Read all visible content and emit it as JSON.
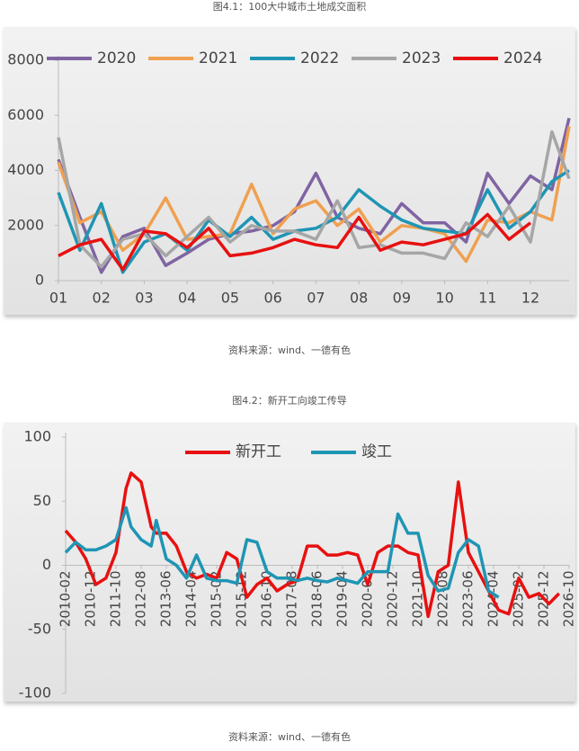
{
  "chart_data": [
    {
      "type": "line",
      "title": "图4.1：100大中城市土地成交面积",
      "source": "资料来源：wind、一德有色",
      "legend": "top",
      "x": [
        1,
        1.5,
        2,
        2.5,
        3,
        3.5,
        4,
        4.5,
        5,
        5.5,
        6,
        6.5,
        7,
        7.5,
        8,
        8.5,
        9,
        9.5,
        10,
        10.5,
        11,
        11.5,
        12,
        12.5,
        12.9
      ],
      "xlim": [
        1,
        12.9
      ],
      "xticks": [
        {
          "value": 1,
          "label": "01"
        },
        {
          "value": 2,
          "label": "02"
        },
        {
          "value": 3,
          "label": "03"
        },
        {
          "value": 4,
          "label": "04"
        },
        {
          "value": 5,
          "label": "05"
        },
        {
          "value": 6,
          "label": "06"
        },
        {
          "value": 7,
          "label": "07"
        },
        {
          "value": 8,
          "label": "08"
        },
        {
          "value": 9,
          "label": "09"
        },
        {
          "value": 10,
          "label": "10"
        },
        {
          "value": 11,
          "label": "11"
        },
        {
          "value": 12,
          "label": "12"
        }
      ],
      "ylim": [
        0,
        8000
      ],
      "yticks": [
        0,
        2000,
        4000,
        6000,
        8000
      ],
      "series": [
        {
          "name": "2020",
          "color": "#8064a2",
          "values": [
            4400,
            2300,
            300,
            1600,
            1900,
            550,
            1000,
            1500,
            1700,
            1800,
            2000,
            2500,
            3900,
            2300,
            1900,
            1700,
            2800,
            2100,
            2100,
            1400,
            3900,
            2800,
            3800,
            3300,
            5900
          ]
        },
        {
          "name": "2021",
          "color": "#f0a050",
          "values": [
            4300,
            2100,
            2500,
            1100,
            1700,
            3000,
            1500,
            1600,
            1700,
            3500,
            1700,
            2600,
            2900,
            2000,
            2600,
            1400,
            2000,
            1900,
            1700,
            700,
            2200,
            2100,
            2500,
            2200,
            5600
          ]
        },
        {
          "name": "2022",
          "color": "#1f95b4",
          "values": [
            3200,
            1100,
            2800,
            300,
            1400,
            1700,
            1100,
            2200,
            1600,
            2300,
            1500,
            1800,
            1900,
            2300,
            3300,
            2700,
            2200,
            1900,
            1800,
            1700,
            3300,
            1900,
            2500,
            3600,
            4000
          ]
        },
        {
          "name": "2023",
          "color": "#a6a6a6",
          "values": [
            5200,
            1300,
            500,
            1500,
            1700,
            900,
            1600,
            2300,
            1400,
            2000,
            1800,
            1800,
            1500,
            2900,
            1200,
            1300,
            1000,
            1000,
            800,
            2100,
            1600,
            2700,
            1400,
            5400,
            3700
          ]
        },
        {
          "name": "2024",
          "color": "#e81010",
          "values": [
            900,
            1300,
            1500,
            400,
            1800,
            1700,
            1200,
            1900,
            900,
            1000,
            1200,
            1500,
            1300,
            1200,
            2300,
            1100,
            1400,
            1300,
            1500,
            1700,
            2400,
            1500,
            2100,
            null,
            null
          ]
        }
      ]
    },
    {
      "type": "line",
      "title": "图4.2：新开工向竣工传导",
      "source": "资料来源：wind、一德有色",
      "legend": "top",
      "x": [
        "2010-02",
        "2010-06",
        "2010-10",
        "2011-02",
        "2011-06",
        "2011-10",
        "2012-02",
        "2012-04",
        "2012-08",
        "2012-12",
        "2013-02",
        "2013-06",
        "2013-10",
        "2014-02",
        "2014-06",
        "2014-10",
        "2015-02",
        "2015-06",
        "2015-10",
        "2016-02",
        "2016-06",
        "2016-10",
        "2017-02",
        "2017-06",
        "2017-10",
        "2018-02",
        "2018-06",
        "2018-10",
        "2019-02",
        "2019-06",
        "2019-10",
        "2020-02",
        "2020-06",
        "2020-10",
        "2021-02",
        "2021-06",
        "2021-10",
        "2022-02",
        "2022-06",
        "2022-10",
        "2023-02",
        "2023-06",
        "2023-10",
        "2024-02",
        "2024-06",
        "2024-10",
        "2025-02",
        "2025-06",
        "2025-10",
        "2026-02",
        "2026-06"
      ],
      "xlim": [
        "2010-02",
        "2026-10"
      ],
      "xticks": [
        "2010-02",
        "2010-12",
        "2011-10",
        "2012-08",
        "2013-06",
        "2014-04",
        "2015-02",
        "2015-12",
        "2016-10",
        "2017-08",
        "2018-06",
        "2019-04",
        "2020-02",
        "2020-12",
        "2021-10",
        "2022-08",
        "2023-06",
        "2024-04",
        "2025-02",
        "2025-12",
        "2026-10"
      ],
      "ylim": [
        -100,
        100
      ],
      "yticks": [
        100,
        50,
        0,
        -50,
        -100
      ],
      "series": [
        {
          "name": "新开工",
          "color": "#e81010",
          "values": [
            27,
            18,
            5,
            -15,
            -10,
            10,
            60,
            72,
            65,
            30,
            25,
            25,
            15,
            -5,
            -10,
            -7,
            -10,
            10,
            5,
            -25,
            -15,
            -10,
            -20,
            -15,
            -12,
            15,
            15,
            8,
            8,
            10,
            8,
            -15,
            10,
            15,
            15,
            10,
            8,
            -40,
            -5,
            0,
            65,
            10,
            -5,
            -20,
            -35,
            -38,
            -10,
            -25,
            -22,
            -30,
            -22
          ]
        },
        {
          "name": "竣工",
          "color": "#1f95b4",
          "values": [
            10,
            18,
            12,
            12,
            15,
            20,
            45,
            30,
            20,
            15,
            35,
            5,
            0,
            -10,
            8,
            -10,
            -12,
            -12,
            -14,
            20,
            18,
            -5,
            -10,
            -10,
            -12,
            -10,
            -12,
            -13,
            -10,
            -12,
            -14,
            -5,
            -5,
            -5,
            40,
            25,
            25,
            -8,
            -20,
            -18,
            10,
            20,
            15,
            -20,
            -25,
            null,
            null,
            null,
            null,
            null,
            null
          ]
        }
      ]
    }
  ]
}
